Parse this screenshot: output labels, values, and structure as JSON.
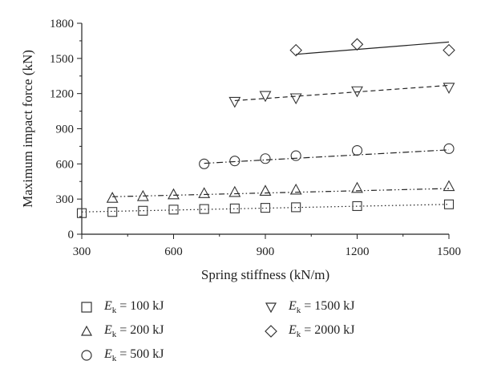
{
  "chart_data": {
    "type": "scatter",
    "xlabel": "Spring stiffness (kN/m)",
    "ylabel": "Maximum impact force (kN)",
    "xlim": [
      300,
      1500
    ],
    "ylim": [
      0,
      1800
    ],
    "xticks": [
      300,
      600,
      900,
      1200,
      1500
    ],
    "yticks": [
      0,
      300,
      600,
      900,
      1200,
      1500,
      1800
    ],
    "legend_position": "bottom",
    "series": [
      {
        "name": "Ek = 100kJ",
        "marker": "square",
        "line": "dotted",
        "x": [
          300,
          400,
          500,
          600,
          700,
          800,
          900,
          1000,
          1200,
          1500
        ],
        "y": [
          180,
          190,
          200,
          210,
          215,
          220,
          225,
          230,
          240,
          255
        ],
        "trend": [
          [
            300,
            190
          ],
          [
            1500,
            255
          ]
        ]
      },
      {
        "name": "Ek = 200kJ",
        "marker": "triangle-up",
        "line": "dashdotdot",
        "x": [
          400,
          500,
          600,
          700,
          800,
          900,
          1000,
          1200,
          1500
        ],
        "y": [
          310,
          325,
          340,
          350,
          360,
          370,
          380,
          395,
          410
        ],
        "trend": [
          [
            400,
            320
          ],
          [
            1500,
            390
          ]
        ]
      },
      {
        "name": "Ek = 500kJ",
        "marker": "circle",
        "line": "dashdot",
        "x": [
          700,
          800,
          900,
          1000,
          1200,
          1500
        ],
        "y": [
          600,
          625,
          645,
          670,
          715,
          730
        ],
        "trend": [
          [
            700,
            605
          ],
          [
            1500,
            720
          ]
        ]
      },
      {
        "name": "Ek = 1500kJ",
        "marker": "triangle-down",
        "line": "dashed",
        "x": [
          800,
          900,
          1000,
          1200,
          1500
        ],
        "y": [
          1130,
          1180,
          1160,
          1220,
          1250
        ],
        "trend": [
          [
            800,
            1140
          ],
          [
            1500,
            1270
          ]
        ]
      },
      {
        "name": "Ek = 2000kJ",
        "marker": "diamond",
        "line": "solid",
        "x": [
          1000,
          1200,
          1500
        ],
        "y": [
          1570,
          1620,
          1570
        ],
        "trend": [
          [
            1000,
            1535
          ],
          [
            1500,
            1640
          ]
        ]
      }
    ]
  },
  "legend": [
    {
      "symbol": "E",
      "subscript": "k",
      "value": " = 100 kJ",
      "marker": "square"
    },
    {
      "symbol": "E",
      "subscript": "k",
      "value": " = 1500 kJ",
      "marker": "triangle-down"
    },
    {
      "symbol": "E",
      "subscript": "k",
      "value": " = 200 kJ",
      "marker": "triangle-up"
    },
    {
      "symbol": "E",
      "subscript": "k",
      "value": " = 2000 kJ",
      "marker": "diamond"
    },
    {
      "symbol": "E",
      "subscript": "k",
      "value": " = 500 kJ",
      "marker": "circle"
    }
  ]
}
